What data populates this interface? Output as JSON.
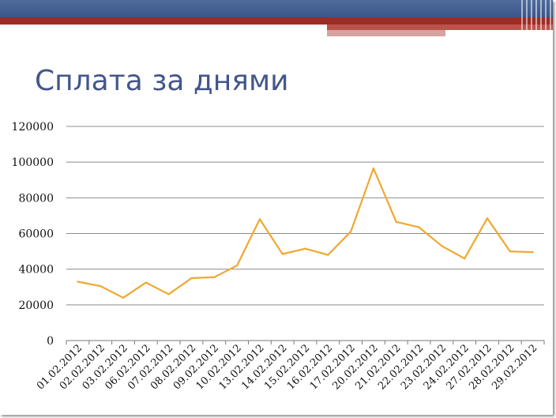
{
  "slide": {
    "title": "Сплата за днями"
  },
  "colors": {
    "header_blue": "#3b568a",
    "header_red": "#9b2d25",
    "title": "#43568a",
    "series_line": "#f0a830",
    "gridline": "#8c8c8c"
  },
  "chart_data": {
    "type": "line",
    "title": "",
    "xlabel": "",
    "ylabel": "",
    "ylim": [
      0,
      120000
    ],
    "yticks": [
      0,
      20000,
      40000,
      60000,
      80000,
      100000,
      120000
    ],
    "grid": true,
    "legend": "none",
    "categories": [
      "01.02.2012",
      "02.02.2012",
      "03.02.2012",
      "06.02.2012",
      "07.02.2012",
      "08.02.2012",
      "09.02.2012",
      "10.02.2012",
      "13.02.2012",
      "14.02.2012",
      "15.02.2012",
      "16.02.2012",
      "17.02.2012",
      "20.02.2012",
      "21.02.2012",
      "22.02.2012",
      "23.02.2012",
      "24.02.2012",
      "27.02.2012",
      "28.02.2012",
      "29.02.2012"
    ],
    "series": [
      {
        "values": [
          33000,
          30500,
          24000,
          32500,
          26000,
          35000,
          35500,
          42000,
          68000,
          48500,
          51500,
          48000,
          61000,
          96500,
          66500,
          63500,
          53000,
          46000,
          68500,
          50000,
          49500
        ]
      }
    ]
  }
}
